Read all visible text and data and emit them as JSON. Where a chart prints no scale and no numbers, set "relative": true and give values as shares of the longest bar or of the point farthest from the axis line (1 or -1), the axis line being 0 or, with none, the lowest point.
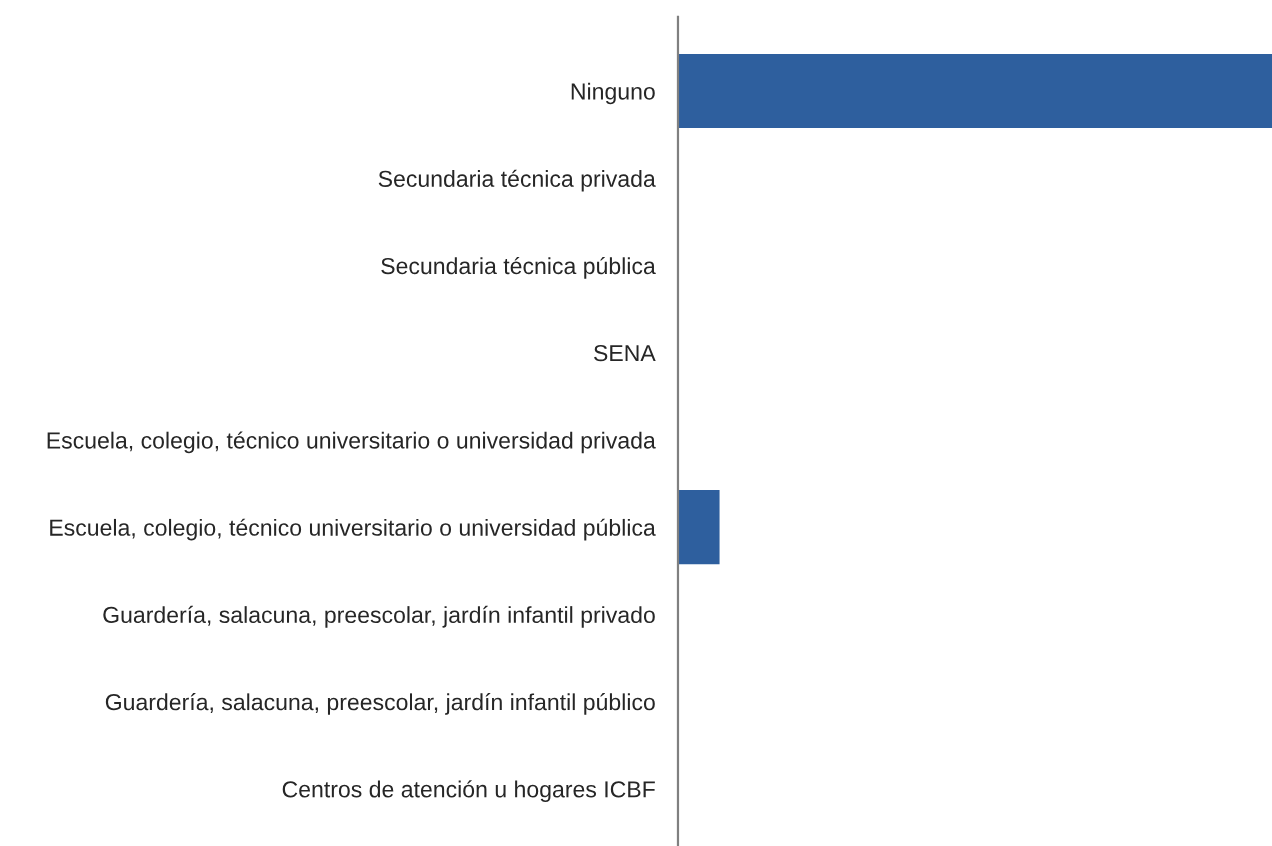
{
  "chart_data": {
    "type": "bar",
    "orientation": "horizontal",
    "relative": true,
    "categories": [
      "Ninguno",
      "Secundaria técnica privada",
      "Secundaria técnica pública",
      "SENA",
      "Escuela, colegio, técnico universitario o universidad privada",
      "Escuela, colegio, técnico universitario o universidad pública",
      "Guardería, salacuna, preescolar, jardín infantil privado",
      "Guardería, salacuna, preescolar, jardín infantil público",
      "Centros de atención u hogares ICBF"
    ],
    "values": [
      1,
      0,
      0,
      0,
      0,
      0.07,
      0,
      0,
      0
    ],
    "color": "#2e5f9e",
    "grid": false,
    "legend": false
  }
}
